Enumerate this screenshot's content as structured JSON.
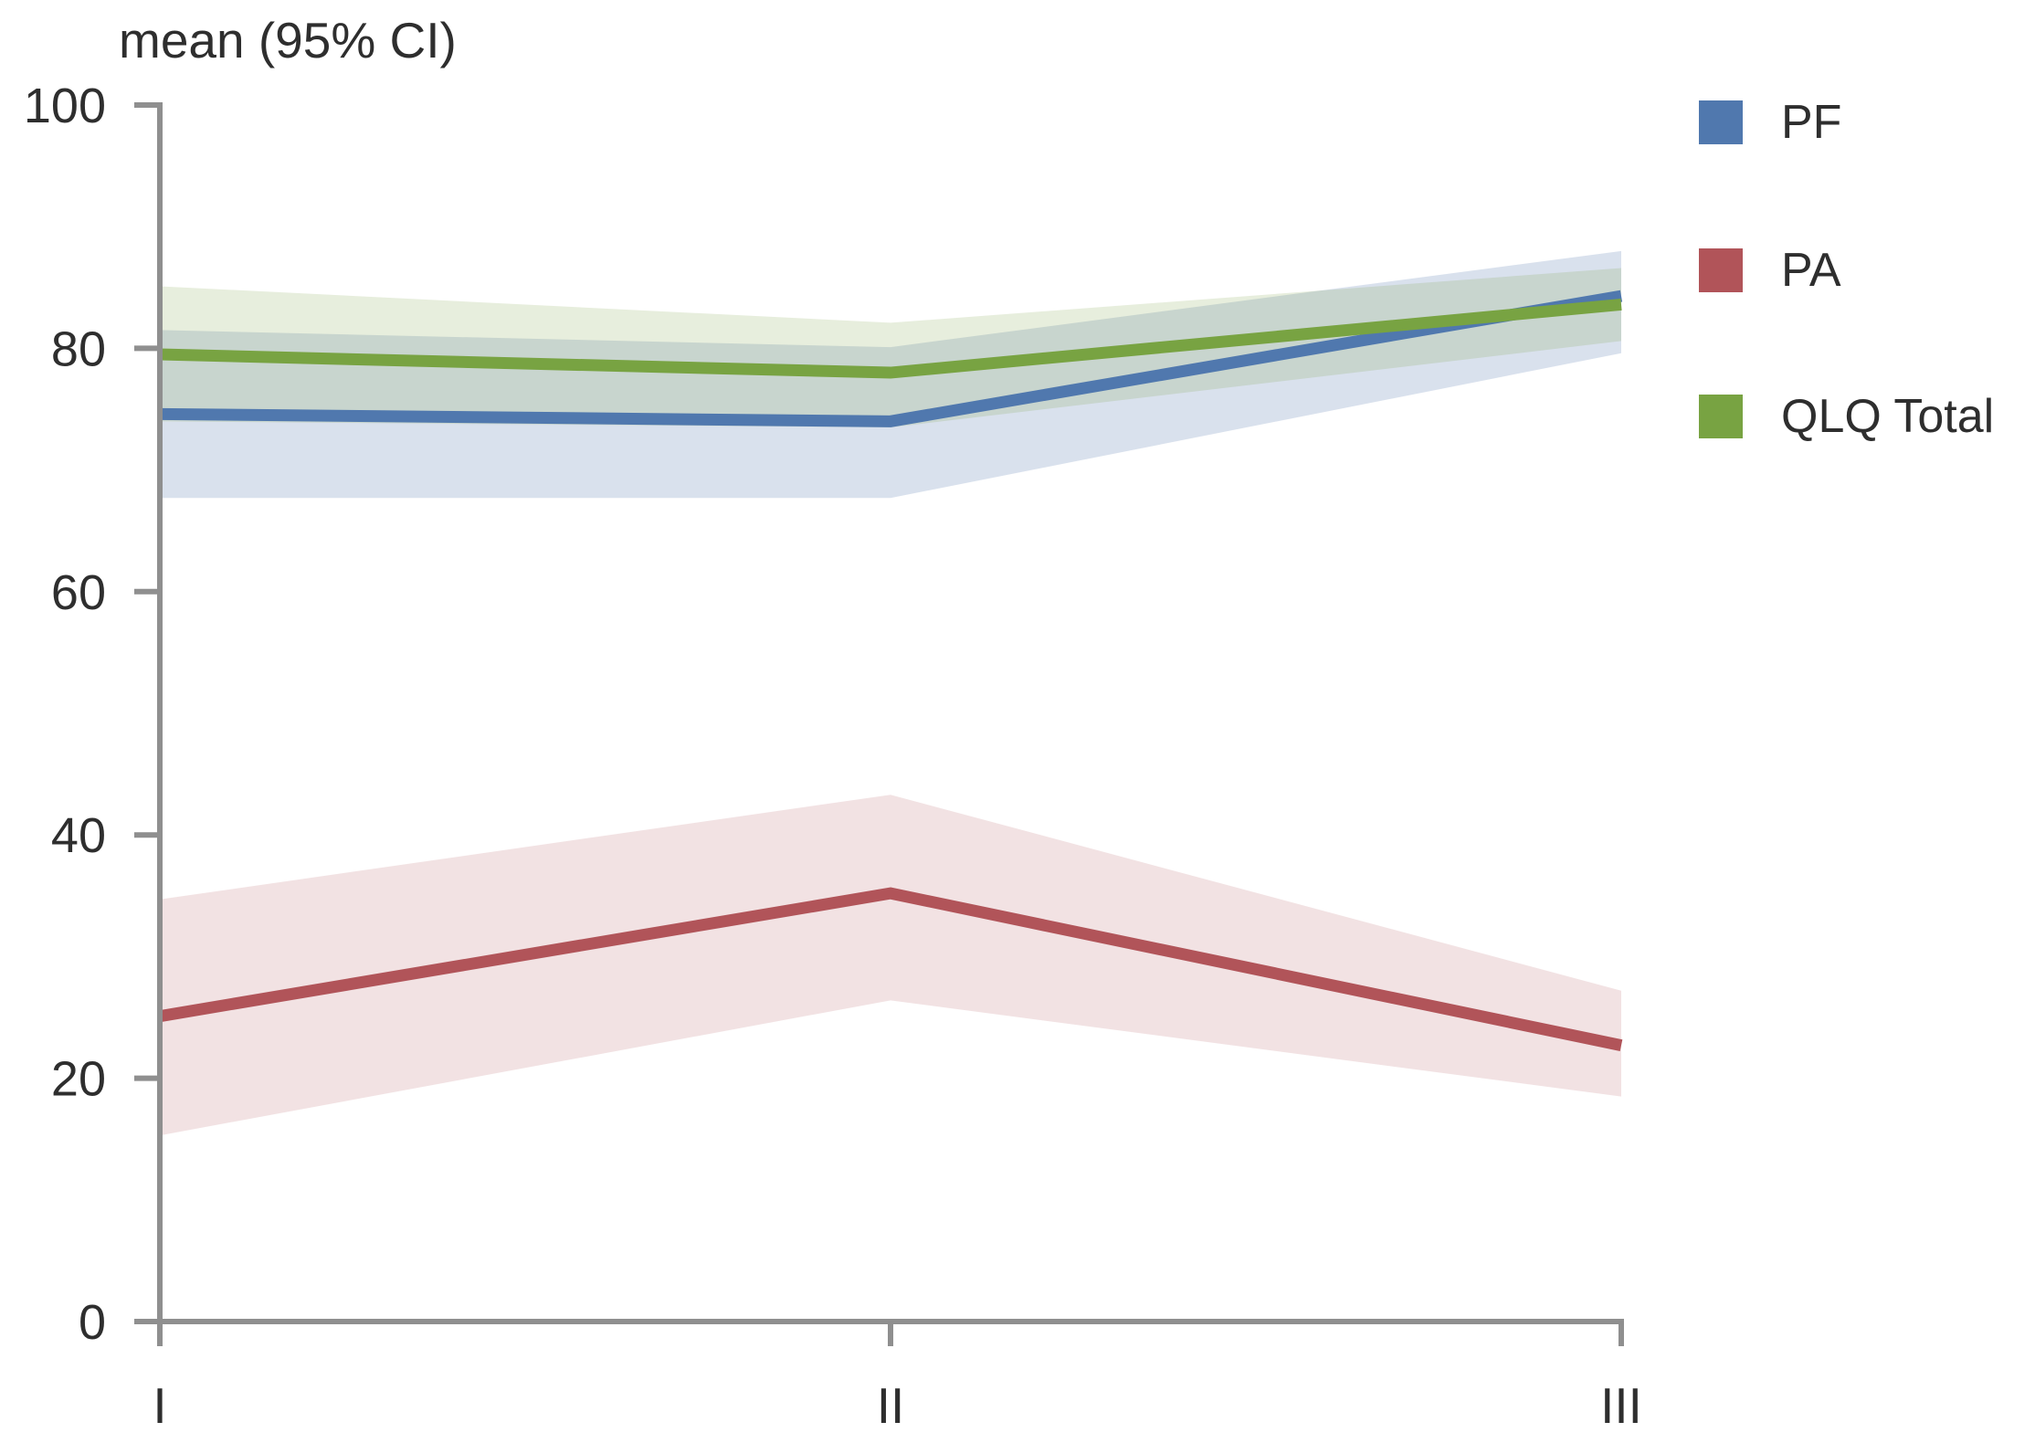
{
  "chart_data": {
    "type": "line",
    "title": "mean (95% CI)",
    "categories": [
      "I",
      "II",
      "III"
    ],
    "y_ticks": [
      0,
      20,
      40,
      60,
      80,
      100
    ],
    "ylim": [
      0,
      100
    ],
    "grid": false,
    "legend_position": "right",
    "axis_color": "#8f8f8f",
    "text_color": "#2e2e2e",
    "series": [
      {
        "name": "PF",
        "color": "#5078ae",
        "band_opacity": 0.22,
        "mean": [
          74.6,
          74.0,
          84.3
        ],
        "ci_upper": [
          81.5,
          80.1,
          88.0
        ],
        "ci_lower": [
          67.7,
          67.7,
          79.6
        ]
      },
      {
        "name": "PA",
        "color": "#b15459",
        "band_opacity": 0.17,
        "mean": [
          25.1,
          35.2,
          22.7
        ],
        "ci_upper": [
          34.7,
          43.3,
          27.2
        ],
        "ci_lower": [
          15.3,
          26.4,
          18.5
        ]
      },
      {
        "name": "QLQ Total",
        "color": "#78a342",
        "band_opacity": 0.18,
        "mean": [
          79.5,
          78.0,
          83.6
        ],
        "ci_upper": [
          85.1,
          82.1,
          86.6
        ],
        "ci_lower": [
          74.0,
          73.5,
          80.6
        ]
      }
    ]
  }
}
